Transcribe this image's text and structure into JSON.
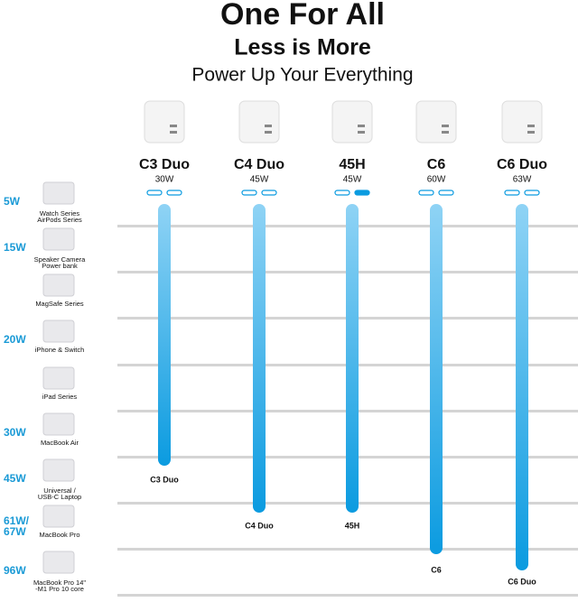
{
  "header": {
    "title": "One For All",
    "subtitle": "Less is More",
    "tagline": "Power Up Your Everything"
  },
  "products": [
    {
      "name": "C3 Duo",
      "wattage": "30W"
    },
    {
      "name": "C4 Duo",
      "wattage": "45W"
    },
    {
      "name": "45H",
      "wattage": "45W"
    },
    {
      "name": "C6",
      "wattage": "60W"
    },
    {
      "name": "C6 Duo",
      "wattage": "63W"
    }
  ],
  "rows": [
    {
      "wattage": [
        "5W"
      ],
      "devices": [
        "Watch Series",
        "AirPods Series"
      ]
    },
    {
      "wattage": [
        "15W"
      ],
      "devices": [
        "Speaker Camera",
        "Power bank"
      ]
    },
    {
      "devices": [
        "MagSafe Series"
      ]
    },
    {
      "wattage": [
        "20W"
      ],
      "devices": [
        "iPhone & Switch"
      ]
    },
    {
      "devices": [
        "iPad Series"
      ]
    },
    {
      "wattage": [
        "30W"
      ],
      "devices": [
        "MacBook Air"
      ]
    },
    {
      "wattage": [
        "45W"
      ],
      "devices": [
        "Universal /",
        "USB-C Laptop"
      ]
    },
    {
      "wattage": [
        "61W/",
        "67W"
      ],
      "devices": [
        "MacBook Pro"
      ]
    },
    {
      "wattage": [
        "96W"
      ],
      "devices": [
        "MacBook Pro 14\"",
        "-M1 Pro  10 core"
      ]
    }
  ]
}
